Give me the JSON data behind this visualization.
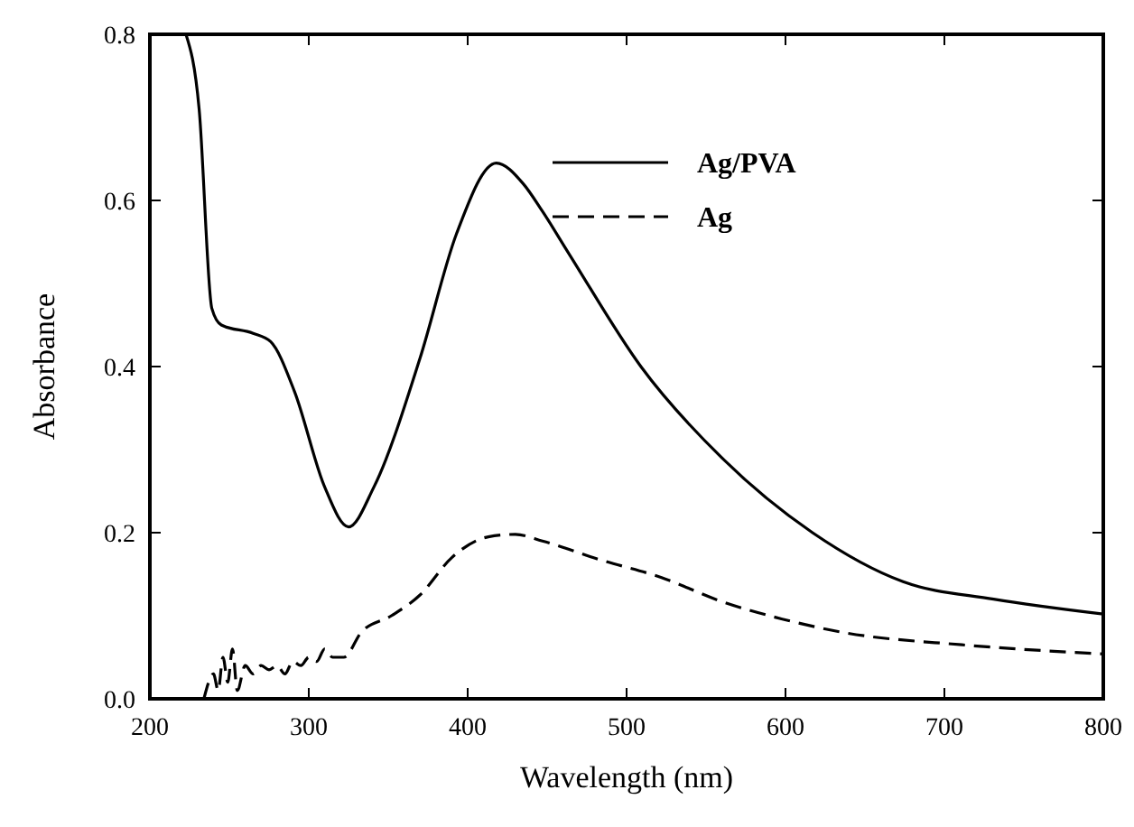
{
  "chart_data": {
    "type": "line",
    "xlabel": "Wavelength (nm)",
    "ylabel": "Absorbance",
    "xlim": [
      200,
      800
    ],
    "ylim": [
      0,
      0.8
    ],
    "xticks": [
      200,
      300,
      400,
      500,
      600,
      700,
      800
    ],
    "yticks": [
      {
        "value": 0,
        "label": "0.0"
      },
      0.2,
      0.4,
      0.6,
      0.8
    ],
    "grid": false,
    "legend": "top",
    "marker": "none",
    "series": [
      {
        "name": "Ag/PVA",
        "color": "#000000",
        "line_style": "solid",
        "x": [
          222.7,
          231,
          239,
          245,
          265,
          276,
          291,
          310,
          325,
          341,
          370,
          393,
          418,
          435,
          447,
          464,
          509,
          560,
          617,
          674,
          731,
          800
        ],
        "values": [
          0.8,
          0.71,
          0.47,
          0.45,
          0.44,
          0.43,
          0.37,
          0.255,
          0.207,
          0.255,
          0.41,
          0.56,
          0.645,
          0.62,
          0.587,
          0.535,
          0.4,
          0.29,
          0.2,
          0.141,
          0.12,
          0.102
        ]
      },
      {
        "name": "Ag",
        "color": "#000000",
        "line_style": "dashed",
        "x": [
          234,
          237,
          240,
          243,
          246,
          249,
          252,
          255,
          260,
          265,
          270,
          275,
          280,
          285,
          290,
          295,
          300,
          305,
          310,
          315,
          322,
          333,
          352,
          370,
          390,
          413,
          430,
          447,
          484,
          522,
          560,
          598,
          636,
          711,
          800
        ],
        "values": [
          0,
          0.02,
          0.03,
          0.01,
          0.05,
          0.02,
          0.06,
          0.01,
          0.04,
          0.03,
          0.04,
          0.035,
          0.04,
          0.03,
          0.045,
          0.04,
          0.05,
          0.045,
          0.06,
          0.05,
          0.05,
          0.08,
          0.1,
          0.125,
          0.17,
          0.195,
          0.198,
          0.19,
          0.167,
          0.146,
          0.117,
          0.096,
          0.08,
          0.065,
          0.054
        ]
      }
    ]
  }
}
